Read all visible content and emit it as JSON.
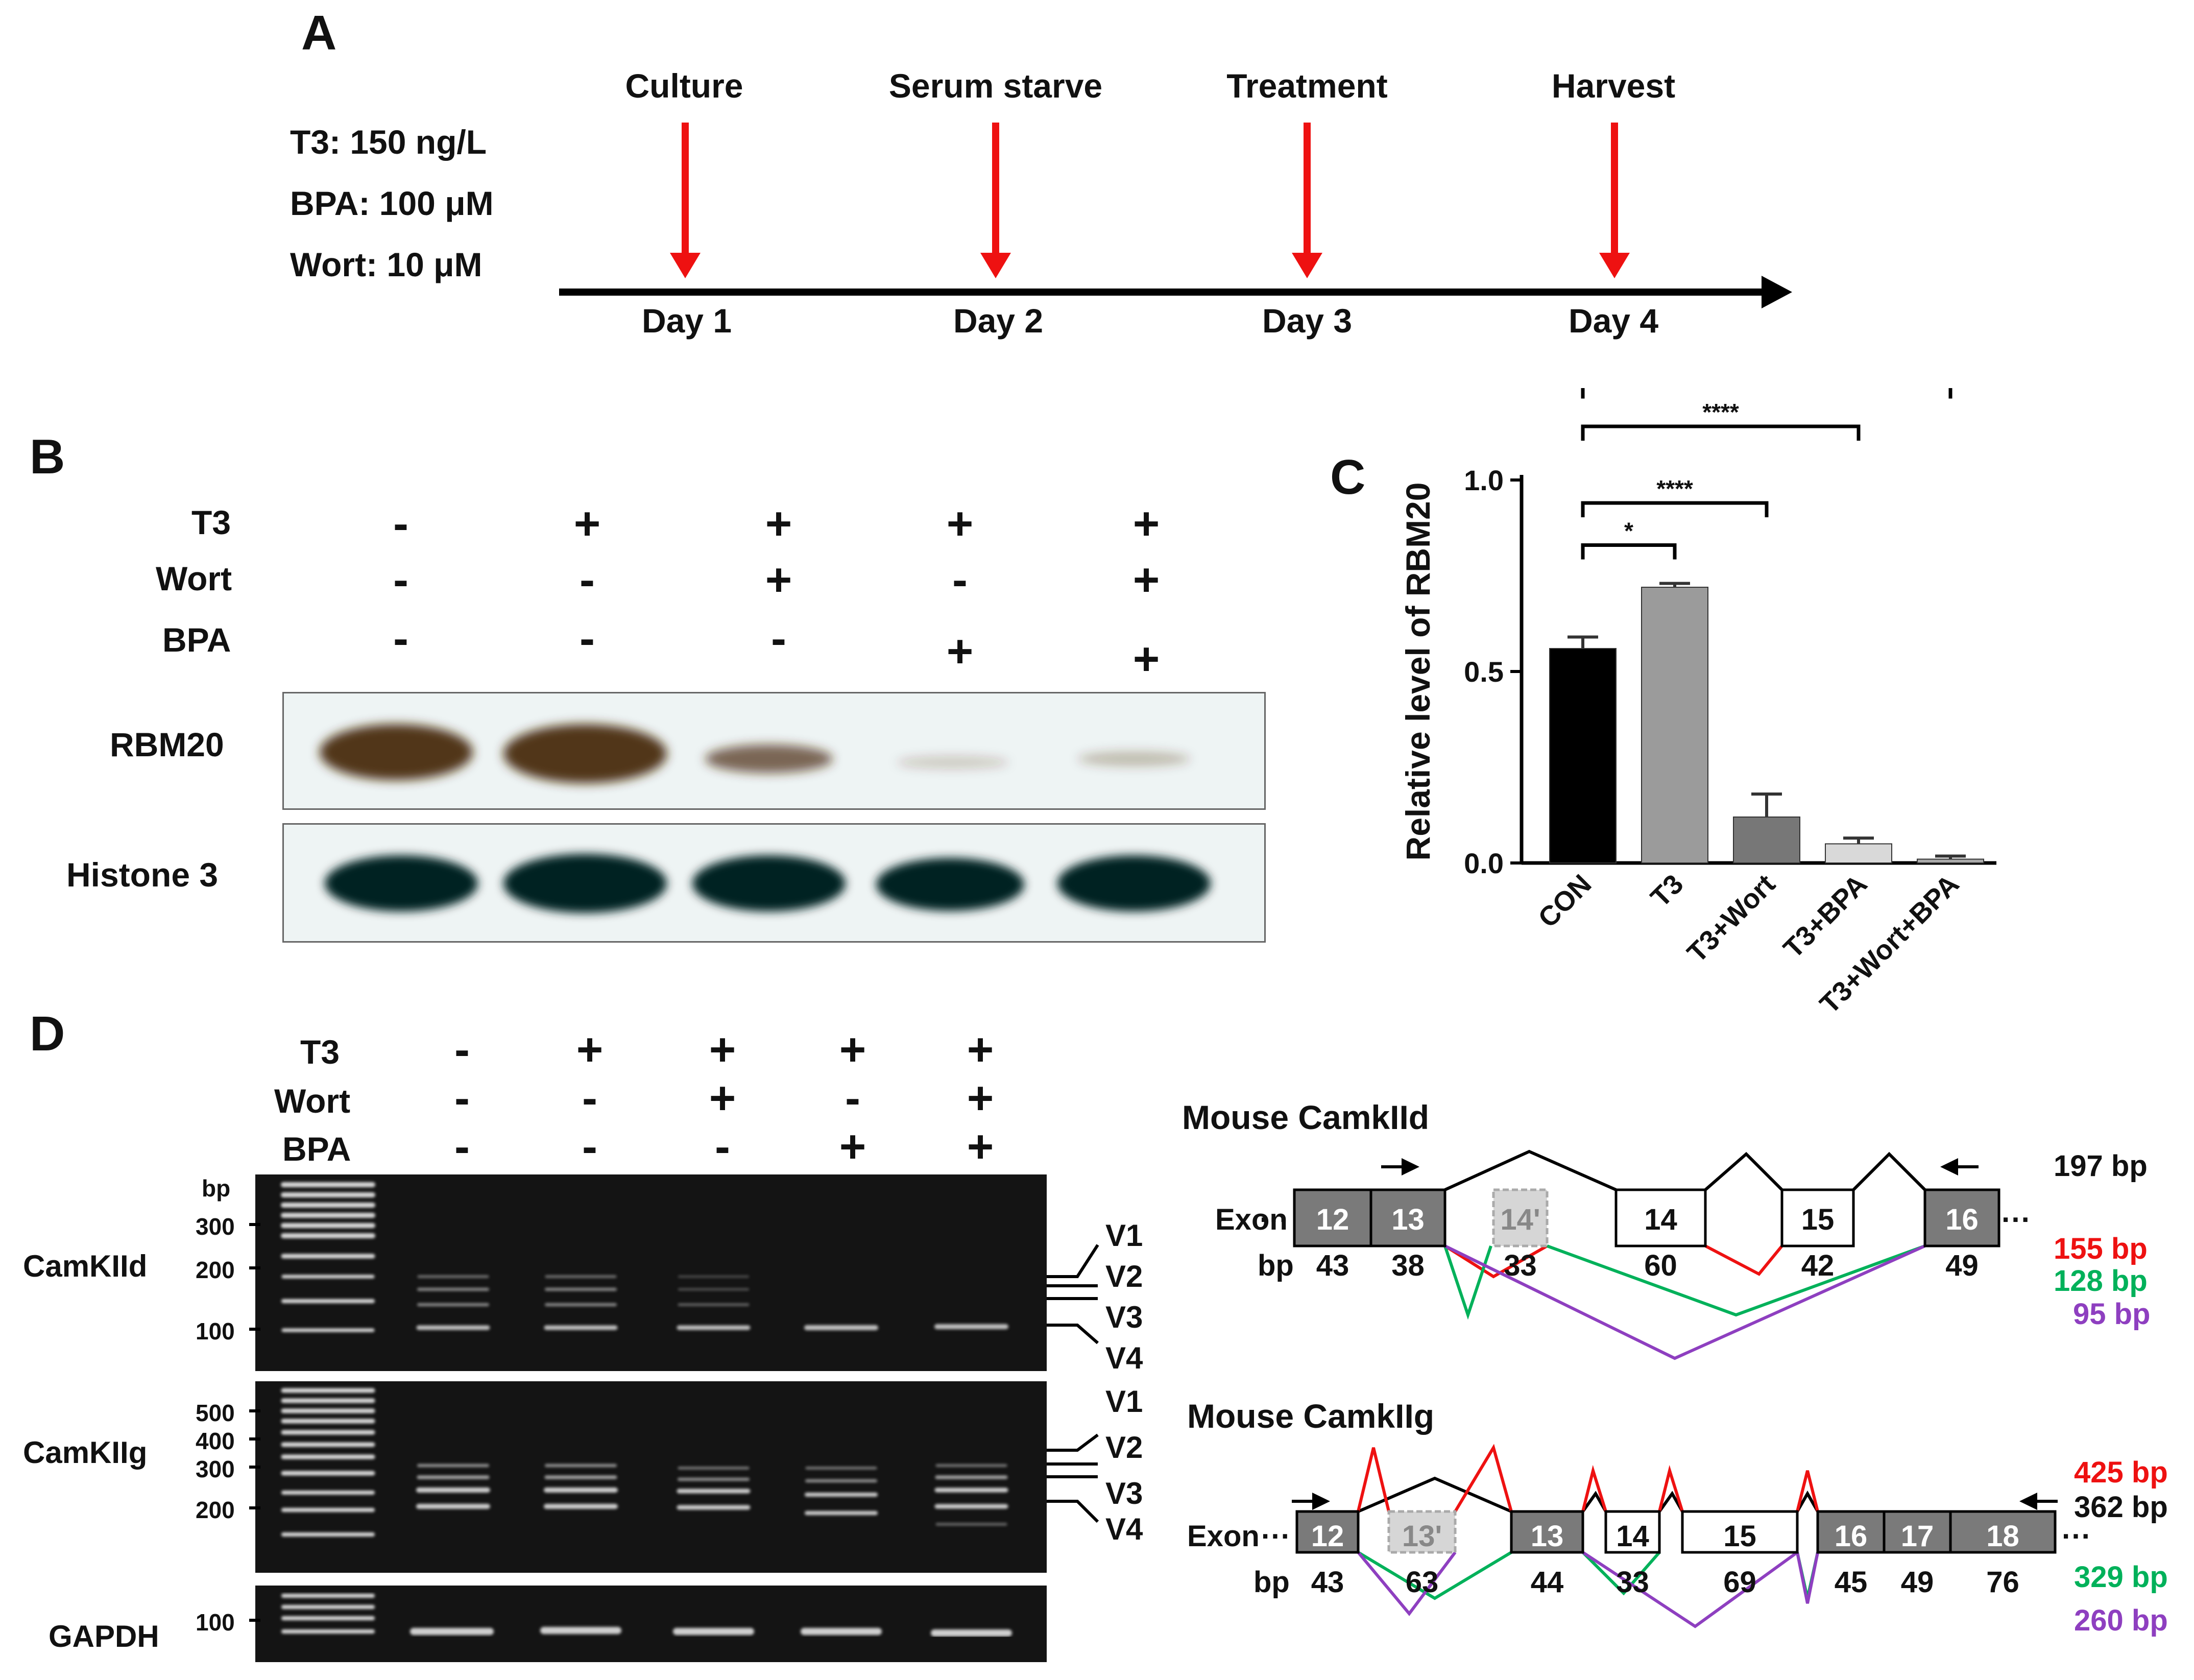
{
  "panels": {
    "a": "A",
    "b": "B",
    "c": "C",
    "d": "D"
  },
  "panel_a": {
    "doses": [
      "T3: 150 ng/L",
      "BPA: 100 μM",
      "Wort: 10 μM"
    ],
    "steps": [
      "Culture",
      "Serum starve",
      "Treatment",
      "Harvest"
    ],
    "days": [
      "Day 1",
      "Day 2",
      "Day 3",
      "Day 4"
    ],
    "arrow_color": "#ee1111"
  },
  "panel_b": {
    "row_labels": [
      "T3",
      "Wort",
      "BPA"
    ],
    "rows": {
      "t3": [
        "-",
        "+",
        "+",
        "+",
        "+"
      ],
      "wort": [
        "-",
        "-",
        "+",
        "-",
        "+"
      ],
      "bpa": [
        "-",
        "-",
        "-",
        "+",
        "+"
      ]
    },
    "blot_labels": [
      "RBM20",
      "Histone 3"
    ],
    "rbm20_intensity": [
      1.0,
      1.0,
      0.55,
      0.12,
      0.15
    ],
    "histone_intensity": [
      1.0,
      1.0,
      1.0,
      0.95,
      0.95
    ]
  },
  "chart_data": {
    "type": "bar",
    "title": "",
    "xlabel": "",
    "ylabel": "Relative level of RBM20",
    "ylim": [
      0,
      1.0
    ],
    "yticks": [
      "0.0",
      "0.5",
      "1.0"
    ],
    "categories": [
      "CON",
      "T3",
      "T3+Wort",
      "T3+BPA",
      "T3+Wort+BPA"
    ],
    "values": [
      0.56,
      0.72,
      0.12,
      0.05,
      0.01
    ],
    "errors": [
      0.03,
      0.01,
      0.06,
      0.015,
      0.008
    ],
    "bar_colors": [
      "#000000",
      "#9b9b9b",
      "#777777",
      "#d9d9d9",
      "#aaaaaa"
    ],
    "significance": [
      {
        "from": 0,
        "to": 1,
        "label": "*"
      },
      {
        "from": 0,
        "to": 2,
        "label": "****"
      },
      {
        "from": 0,
        "to": 3,
        "label": "****"
      },
      {
        "from": 0,
        "to": 4,
        "label": "****"
      }
    ]
  },
  "panel_d": {
    "row_labels": [
      "T3",
      "Wort",
      "BPA"
    ],
    "rows": {
      "t3": [
        "-",
        "+",
        "+",
        "+",
        "+"
      ],
      "wort": [
        "-",
        "-",
        "+",
        "-",
        "+"
      ],
      "bpa": [
        "-",
        "-",
        "-",
        "+",
        "+"
      ]
    },
    "gel_labels": [
      "CamKIId",
      "CamKIIg",
      "GAPDH"
    ],
    "bp_unit": "bp",
    "gel1_markers": [
      "300",
      "200",
      "100"
    ],
    "gel2_markers": [
      "500",
      "400",
      "300",
      "200"
    ],
    "gel3_markers": [
      "100"
    ],
    "variants": [
      "V1",
      "V2",
      "V3",
      "V4"
    ]
  },
  "camkiid": {
    "title": "Mouse CamkIId",
    "exon_word": "Exon",
    "bp_word": "bp",
    "exons": [
      "12",
      "13",
      "14'",
      "14",
      "15",
      "16"
    ],
    "lengths": [
      "43",
      "38",
      "33",
      "60",
      "42",
      "49"
    ],
    "products": [
      {
        "label": "197 bp",
        "color": "#000000"
      },
      {
        "label": "155 bp",
        "color": "#ee1111"
      },
      {
        "label": "128 bp",
        "color": "#00b15a"
      },
      {
        "label": "95 bp",
        "color": "#8e3fc0"
      }
    ]
  },
  "camkiig": {
    "title": "Mouse CamkIIg",
    "exon_word": "Exon",
    "bp_word": "bp",
    "exons": [
      "12",
      "13'",
      "13",
      "14",
      "15",
      "16",
      "17",
      "18"
    ],
    "lengths": [
      "43",
      "63",
      "44",
      "33",
      "69",
      "45",
      "49",
      "76"
    ],
    "products": [
      {
        "label": "425 bp",
        "color": "#ee1111"
      },
      {
        "label": "362 bp",
        "color": "#000000"
      },
      {
        "label": "329 bp",
        "color": "#00b15a"
      },
      {
        "label": "260 bp",
        "color": "#8e3fc0"
      }
    ]
  },
  "ellipsis": "···"
}
